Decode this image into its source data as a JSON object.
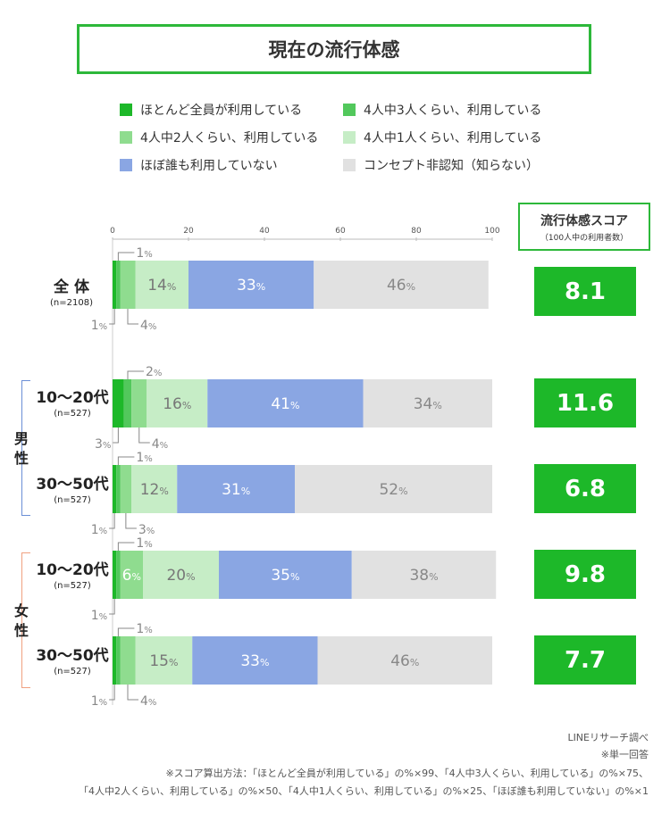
{
  "title": "現在の流行体感",
  "legend": [
    {
      "label": "ほとんど全員が利用している",
      "color": "#1db829"
    },
    {
      "label": "4人中3人くらい、利用している",
      "color": "#52c85c"
    },
    {
      "label": "4人中2人くらい、利用している",
      "color": "#8fdc8f"
    },
    {
      "label": "4人中1人くらい、利用している",
      "color": "#c6edc6"
    },
    {
      "label": "ほぼ誰も利用していない",
      "color": "#8aa6e3"
    },
    {
      "label": "コンセプト非認知（知らない）",
      "color": "#e1e1e1"
    }
  ],
  "score_header": {
    "title": "流行体感スコア",
    "subtitle": "（100人中の利用者数）"
  },
  "groups": [
    {
      "label": "男性"
    },
    {
      "label": "女性"
    }
  ],
  "chart_data": {
    "type": "bar",
    "orientation": "horizontal",
    "stacked": true,
    "xlim": [
      0,
      100
    ],
    "xticks": [
      "0",
      "20",
      "40",
      "60",
      "80",
      "100"
    ],
    "categories": [
      "全 体",
      "10〜20代",
      "30〜50代",
      "10〜20代",
      "30〜50代"
    ],
    "category_sublabels": [
      "(n=2108)",
      "(n=527)",
      "(n=527)",
      "(n=527)",
      "(n=527)"
    ],
    "category_groups": [
      "",
      "男性",
      "男性",
      "女性",
      "女性"
    ],
    "series": [
      {
        "name": "ほとんど全員が利用している",
        "values": [
          1,
          3,
          1,
          1,
          1
        ]
      },
      {
        "name": "4人中3人くらい、利用している",
        "values": [
          1,
          2,
          1,
          1,
          1
        ]
      },
      {
        "name": "4人中2人くらい、利用している",
        "values": [
          4,
          4,
          3,
          6,
          4
        ]
      },
      {
        "name": "4人中1人くらい、利用している",
        "values": [
          14,
          16,
          12,
          20,
          15
        ]
      },
      {
        "name": "ほぼ誰も利用していない",
        "values": [
          33,
          41,
          31,
          35,
          33
        ]
      },
      {
        "name": "コンセプト非認知（知らない）",
        "values": [
          46,
          34,
          52,
          38,
          46
        ]
      }
    ],
    "scores": [
      "8.1",
      "11.6",
      "6.8",
      "9.8",
      "7.7"
    ]
  },
  "footnotes": [
    "LINEリサーチ調べ",
    "※単一回答",
    "※スコア算出方法：「ほとんど全員が利用している」の%×99、「4人中3人くらい、利用している」の%×75、",
    "「4人中2人くらい、利用している」の%×50、「4人中1人くらい、利用している」の%×25、「ほぼ誰も利用していない」の%×1"
  ]
}
